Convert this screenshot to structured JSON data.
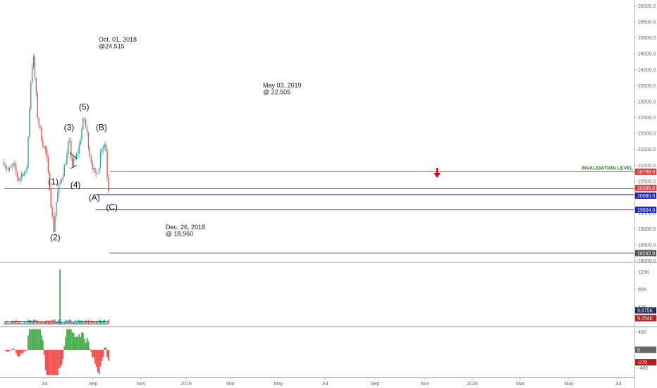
{
  "chart_data": {
    "type": "candlestick",
    "price_axis": {
      "ticks": [
        "26000.0",
        "25500.0",
        "25000.0",
        "24500.0",
        "24000.0",
        "23500.0",
        "23000.0",
        "22500.0",
        "22000.0",
        "21500.0",
        "21000.0",
        "20500.0",
        "20000.0",
        "19500.0",
        "19000.0",
        "18500.0",
        "18000.0"
      ],
      "range": [
        17950,
        26100
      ]
    },
    "x_axis": {
      "ticks": [
        "Jul",
        "Sep",
        "Nov",
        "2019",
        "Mar",
        "May",
        "Jul",
        "Sep",
        "Nov",
        "2020",
        "Mar",
        "May",
        "Jul"
      ]
    },
    "price_anchors": [
      [
        "2018-06-01",
        21100
      ],
      [
        "2018-06-20",
        20800
      ],
      [
        "2018-07-10",
        21000
      ],
      [
        "2018-07-31",
        20550
      ],
      [
        "2018-08-20",
        20800
      ],
      [
        "2018-09-03",
        20700
      ],
      [
        "2018-09-20",
        23500
      ],
      [
        "2018-10-01",
        24515
      ],
      [
        "2018-10-20",
        22500
      ],
      [
        "2018-11-10",
        21700
      ],
      [
        "2018-11-25",
        21400
      ],
      [
        "2018-12-03",
        20700
      ],
      [
        "2018-12-10",
        20300
      ],
      [
        "2018-12-18",
        19500
      ],
      [
        "2018-12-26",
        18960
      ],
      [
        "2019-01-05",
        19800
      ],
      [
        "2019-01-20",
        20400
      ],
      [
        "2019-02-05",
        20800
      ],
      [
        "2019-02-20",
        21300
      ],
      [
        "2019-03-01",
        21800
      ],
      [
        "2019-03-15",
        21000
      ],
      [
        "2019-03-28",
        21200
      ],
      [
        "2019-04-10",
        21500
      ],
      [
        "2019-04-20",
        22000
      ],
      [
        "2019-05-03",
        22505
      ],
      [
        "2019-05-15",
        22000
      ],
      [
        "2019-05-28",
        21300
      ],
      [
        "2019-06-10",
        20900
      ],
      [
        "2019-06-20",
        20600
      ],
      [
        "2019-07-05",
        21000
      ],
      [
        "2019-07-15",
        21600
      ],
      [
        "2019-08-01",
        21700
      ],
      [
        "2019-08-08",
        20700
      ],
      [
        "2019-08-14",
        20265
      ]
    ],
    "annotations": [
      {
        "id": "peak-2018",
        "lines": [
          "Oct. 01, 2018",
          "@24,515"
        ]
      },
      {
        "id": "low-2018",
        "lines": [
          "Dec. 26, 2018",
          "@ 18,960"
        ]
      },
      {
        "id": "peak-2019",
        "lines": [
          "May 03, 2019",
          "@ 22,505"
        ]
      }
    ],
    "wave_labels": [
      {
        "text": "(1)",
        "date": "2018-12-25",
        "price": 20400
      },
      {
        "text": "(2)",
        "date": "2019-01-02",
        "price": 18650
      },
      {
        "text": "(3)",
        "date": "2019-03-01",
        "price": 22100
      },
      {
        "text": "(4)",
        "date": "2019-03-28",
        "price": 20300
      },
      {
        "text": "(5)",
        "date": "2019-05-03",
        "price": 22750
      },
      {
        "text": "(A)",
        "date": "2019-06-15",
        "price": 19900
      },
      {
        "text": "(B)",
        "date": "2019-07-15",
        "price": 22100
      },
      {
        "text": "(C)",
        "date": "2019-08-28",
        "price": 19600
      }
    ],
    "levels": [
      {
        "name": "invalidation",
        "label": "INVALIDATION LEVEL",
        "value": 20798.0,
        "value_text": "20798.0",
        "color": "#e53935",
        "start": "2019-08-20"
      },
      {
        "name": "current",
        "label": "",
        "value": 20265.0,
        "value_text": "20265.0",
        "color": "#e53935",
        "start": "2018-06-01"
      },
      {
        "name": "target-1",
        "label": "",
        "value": 20080.0,
        "value_text": "20080.0",
        "color": "#1a23c9",
        "start": "2019-06-20"
      },
      {
        "name": "target-2",
        "label": "",
        "value": 19604.0,
        "value_text": "19604.0",
        "color": "#1a23c9",
        "start": "2019-06-20"
      },
      {
        "name": "support",
        "label": "",
        "value": 18242.0,
        "value_text": "18242.0",
        "color": "#555555",
        "start": "2019-08-18"
      }
    ],
    "volume": {
      "axis_ticks": [
        "120K",
        "80K",
        "40K"
      ],
      "range": [
        0,
        135000
      ],
      "spike": {
        "date": "2019-01-22",
        "value": 125000
      },
      "tags": [
        {
          "text": "9.875K",
          "color": "#1e2a5a"
        },
        {
          "text": "9.054K",
          "color": "#b71c1c"
        }
      ]
    },
    "oscillator": {
      "axis_ticks": [
        "400",
        "0",
        "-400"
      ],
      "range": [
        -600,
        500
      ],
      "current": -279,
      "tags": [
        {
          "text": "0",
          "color": "#666666"
        },
        {
          "text": "-279",
          "color": "#b71c1c"
        }
      ]
    },
    "colors": {
      "up": "#26a69a",
      "down": "#ef5350",
      "osc_up": "#4caf50",
      "osc_down": "#ef5350",
      "arrow": "#e60000"
    }
  }
}
